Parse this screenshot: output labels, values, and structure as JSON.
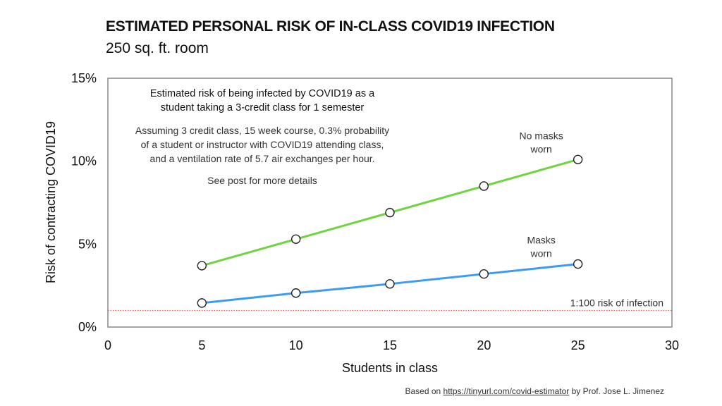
{
  "title": "ESTIMATED PERSONAL RISK OF IN-CLASS COVID19 INFECTION",
  "subtitle": "250 sq. ft. room",
  "annotation": {
    "heading_lines": [
      "Estimated risk of being infected by COVID19 as a",
      "student taking a 3-credit class for 1 semester"
    ],
    "body_lines": [
      "Assuming 3 credit class, 15 week course, 0.3% probability",
      "of a student or instructor with COVID19 attending class,",
      "and a ventilation rate of 5.7 air exchanges per hour."
    ],
    "footer": "See post for more details"
  },
  "credit": {
    "prefix": "Based on ",
    "link": "https://tinyurl.com/covid-estimator",
    "suffix": " by Prof. Jose L. Jimenez"
  },
  "chart_data": {
    "type": "line",
    "title": "ESTIMATED PERSONAL RISK OF IN-CLASS COVID19 INFECTION",
    "subtitle": "250 sq. ft. room",
    "xlabel": "Students in class",
    "ylabel": "Risk of contracting COVID19",
    "xlim": [
      0,
      30
    ],
    "ylim": [
      0,
      15
    ],
    "xticks": [
      0,
      5,
      10,
      15,
      20,
      25,
      30
    ],
    "yticks": [
      0,
      5,
      10,
      15
    ],
    "ytick_labels": [
      "0%",
      "5%",
      "10%",
      "15%"
    ],
    "grid": false,
    "x": [
      5,
      10,
      15,
      20,
      25
    ],
    "series": [
      {
        "name": "No masks worn",
        "label_lines": [
          "No masks",
          "worn"
        ],
        "color": "#6fd43f",
        "values": [
          3.7,
          5.3,
          6.9,
          8.5,
          10.1
        ]
      },
      {
        "name": "Masks worn",
        "label_lines": [
          "Masks",
          "worn"
        ],
        "color": "#3d9bf2",
        "values": [
          1.45,
          2.05,
          2.6,
          3.2,
          3.8
        ]
      }
    ],
    "reference_line": {
      "value": 1.0,
      "label": "1:100 risk of infection",
      "color": "#e8674f",
      "style": "dotted"
    }
  }
}
